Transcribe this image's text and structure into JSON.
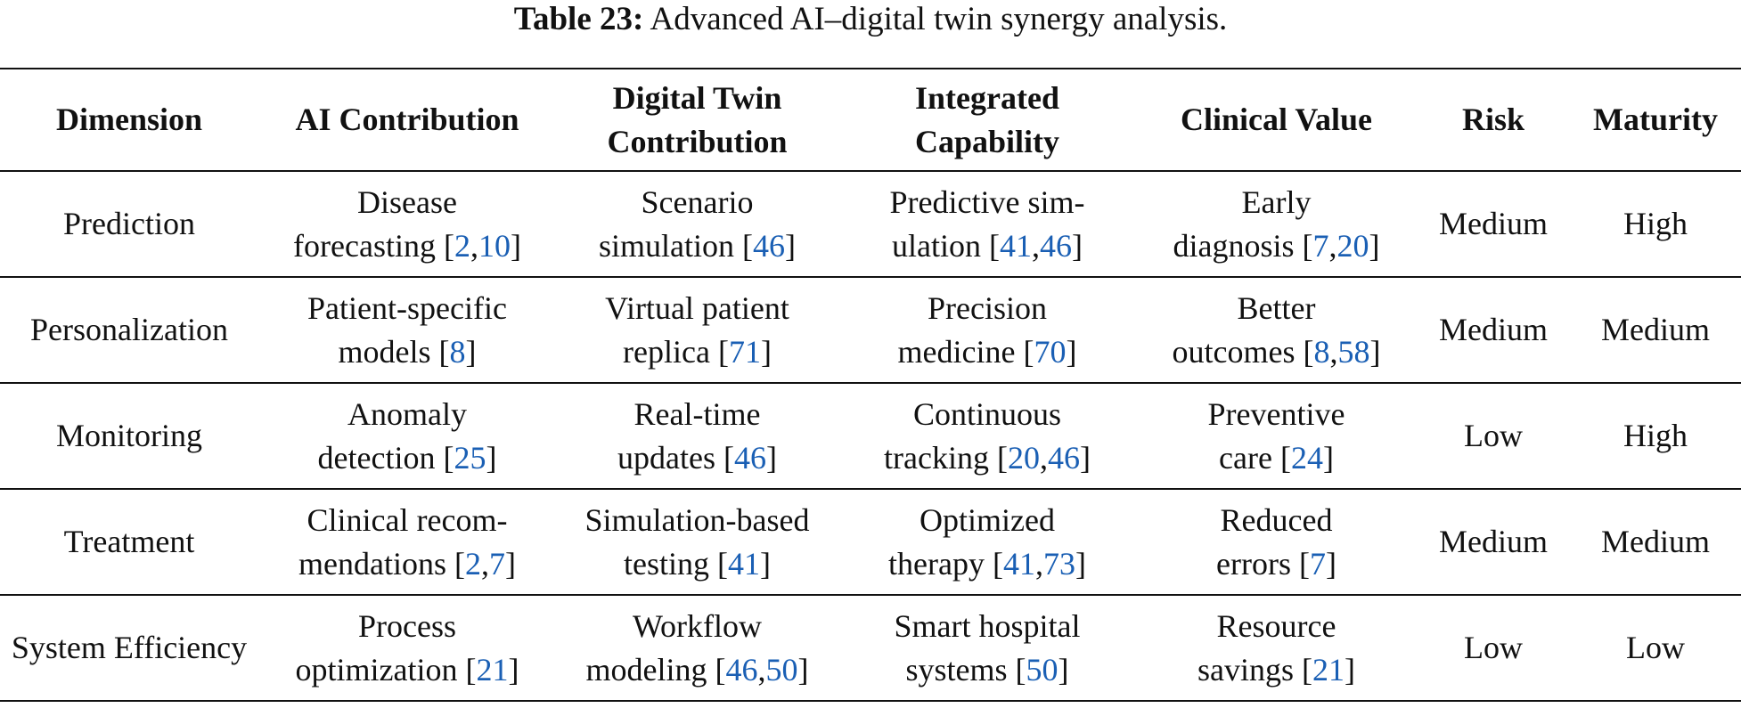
{
  "caption": {
    "label": "Table 23:",
    "text": "Advanced AI–digital twin synergy analysis."
  },
  "table": {
    "headers": [
      {
        "line1": "Dimension",
        "line2": ""
      },
      {
        "line1": "AI Contribution",
        "line2": ""
      },
      {
        "line1": "Digital Twin",
        "line2": "Contribution"
      },
      {
        "line1": "Integrated",
        "line2": "Capability"
      },
      {
        "line1": "Clinical Value",
        "line2": ""
      },
      {
        "line1": "Risk",
        "line2": ""
      },
      {
        "line1": "Maturity",
        "line2": ""
      }
    ],
    "rows": [
      {
        "dimension": "Prediction",
        "ai": {
          "line1": "Disease",
          "line2": "forecasting",
          "cites": [
            "2",
            "10"
          ]
        },
        "dt": {
          "line1": "Scenario",
          "line2": "simulation",
          "cites": [
            "46"
          ]
        },
        "ic": {
          "line1": "Predictive sim-",
          "line2": "ulation",
          "cites": [
            "41",
            "46"
          ]
        },
        "cv": {
          "line1": "Early",
          "line2": "diagnosis",
          "cites": [
            "7",
            "20"
          ]
        },
        "risk": "Medium",
        "maturity": "High"
      },
      {
        "dimension": "Personalization",
        "ai": {
          "line1": "Patient-specific",
          "line2": "models",
          "cites": [
            "8"
          ]
        },
        "dt": {
          "line1": "Virtual patient",
          "line2": "replica",
          "cites": [
            "71"
          ]
        },
        "ic": {
          "line1": "Precision",
          "line2": "medicine",
          "cites": [
            "70"
          ]
        },
        "cv": {
          "line1": "Better",
          "line2": "outcomes",
          "cites": [
            "8",
            "58"
          ]
        },
        "risk": "Medium",
        "maturity": "Medium"
      },
      {
        "dimension": "Monitoring",
        "ai": {
          "line1": "Anomaly",
          "line2": "detection",
          "cites": [
            "25"
          ]
        },
        "dt": {
          "line1": "Real-time",
          "line2": "updates",
          "cites": [
            "46"
          ]
        },
        "ic": {
          "line1": "Continuous",
          "line2": "tracking",
          "cites": [
            "20",
            "46"
          ]
        },
        "cv": {
          "line1": "Preventive",
          "line2": "care",
          "cites": [
            "24"
          ]
        },
        "risk": "Low",
        "maturity": "High"
      },
      {
        "dimension": "Treatment",
        "ai": {
          "line1": "Clinical recom-",
          "line2": "mendations",
          "cites": [
            "2",
            "7"
          ]
        },
        "dt": {
          "line1": "Simulation-based",
          "line2": "testing",
          "cites": [
            "41"
          ]
        },
        "ic": {
          "line1": "Optimized",
          "line2": "therapy",
          "cites": [
            "41",
            "73"
          ]
        },
        "cv": {
          "line1": "Reduced",
          "line2": "errors",
          "cites": [
            "7"
          ]
        },
        "risk": "Medium",
        "maturity": "Medium"
      },
      {
        "dimension": "System Efficiency",
        "ai": {
          "line1": "Process",
          "line2": "optimization",
          "cites": [
            "21"
          ]
        },
        "dt": {
          "line1": "Workflow",
          "line2": "modeling",
          "cites": [
            "46",
            "50"
          ]
        },
        "ic": {
          "line1": "Smart hospital",
          "line2": "systems",
          "cites": [
            "50"
          ]
        },
        "cv": {
          "line1": "Resource",
          "line2": "savings",
          "cites": [
            "21"
          ]
        },
        "risk": "Low",
        "maturity": "Low"
      }
    ],
    "colors": {
      "citation": "#1a5fb4",
      "text": "#111111"
    }
  }
}
